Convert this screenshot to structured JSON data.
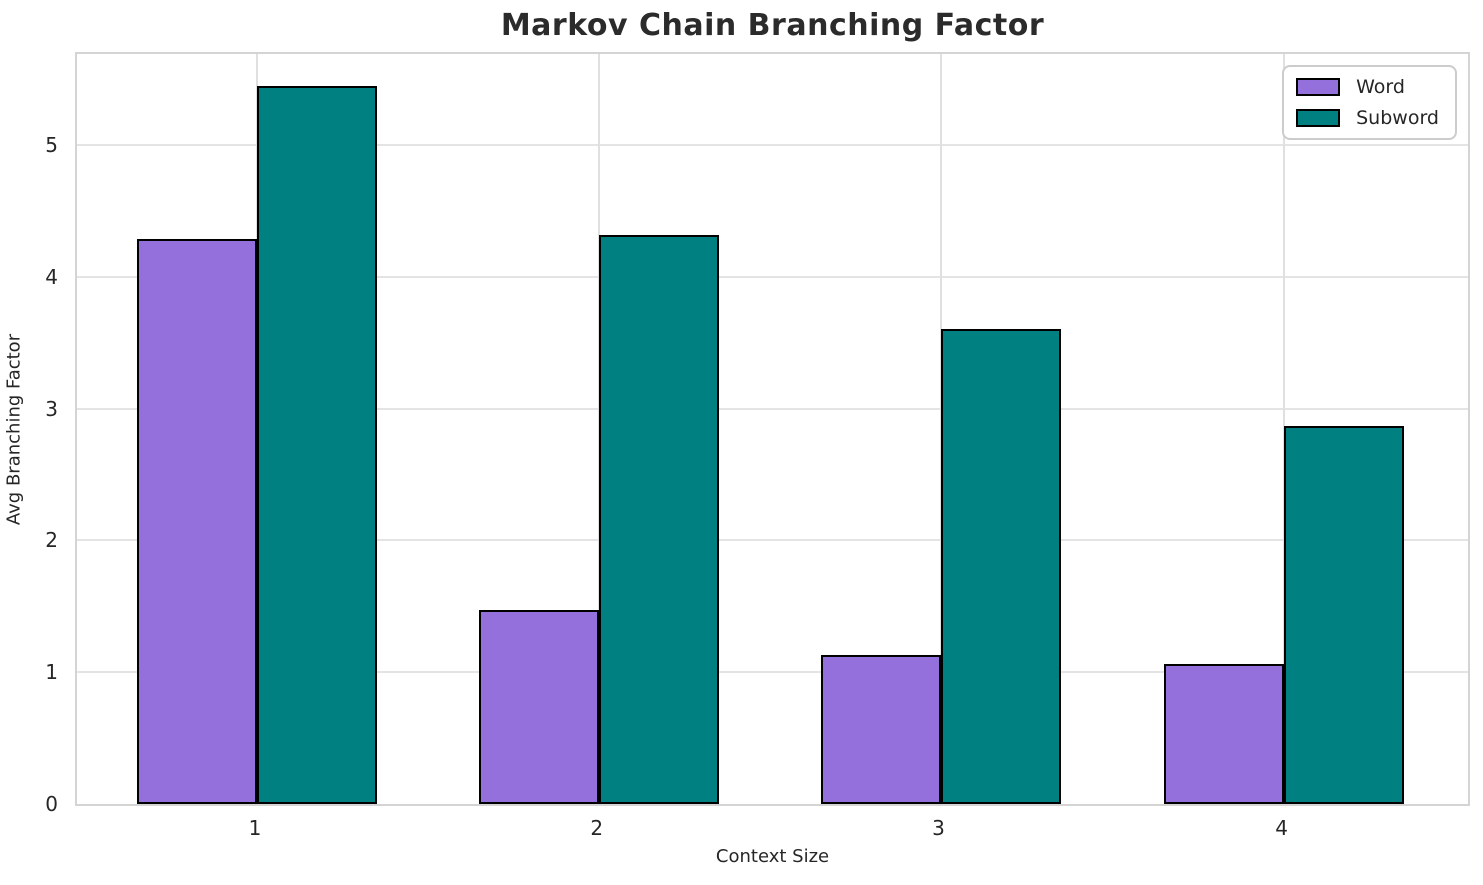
{
  "chart_data": {
    "type": "bar",
    "title": "Markov Chain Branching Factor",
    "xlabel": "Context Size",
    "ylabel": "Avg Branching Factor",
    "categories": [
      "1",
      "2",
      "3",
      "4"
    ],
    "series": [
      {
        "name": "Word",
        "color": "#9370DB",
        "values": [
          4.29,
          1.47,
          1.13,
          1.06
        ]
      },
      {
        "name": "Subword",
        "color": "#008080",
        "values": [
          5.45,
          4.32,
          3.6,
          2.87
        ]
      }
    ],
    "ylim": [
      0,
      5.72
    ],
    "yticks": [
      0,
      1,
      2,
      3,
      4,
      5
    ],
    "grid": true,
    "legend_position": "upper right",
    "bar_edge_color": "#000000",
    "colors": {
      "grid": "#e4e4e4",
      "spine": "#d4d4d4",
      "text": "#262626",
      "title": "#2b2b2b",
      "background": "#ffffff"
    }
  }
}
